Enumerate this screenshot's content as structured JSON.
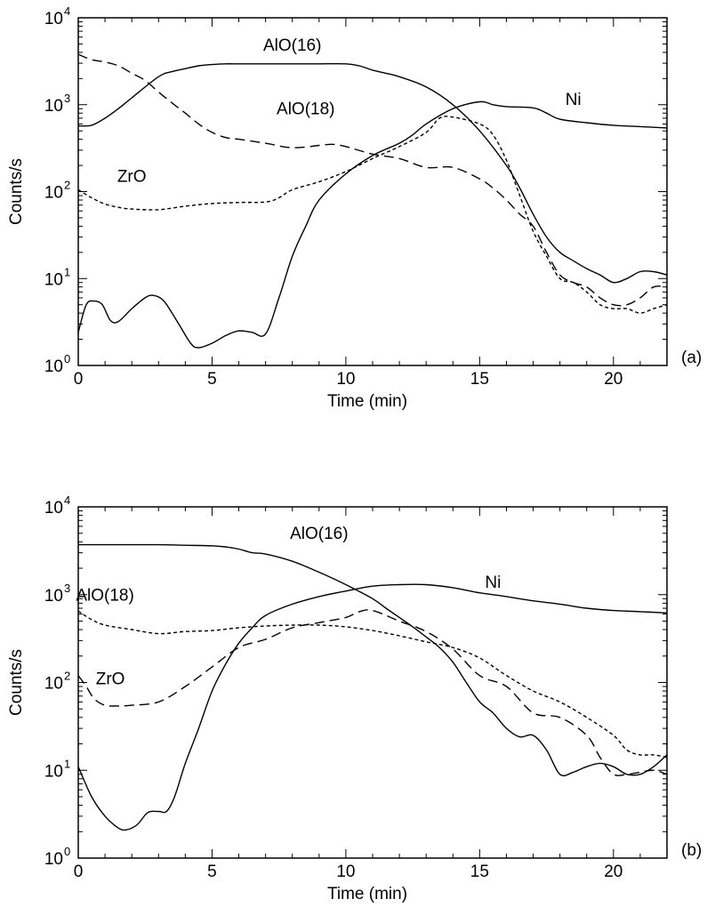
{
  "chart_data": [
    {
      "type": "line",
      "panel_label": "(a)",
      "xlabel": "Time (min)",
      "ylabel": "Counts/s",
      "xlim": [
        0,
        22
      ],
      "ylim": [
        1,
        10000
      ],
      "yscale": "log",
      "xticks": [
        0,
        5,
        10,
        15,
        20
      ],
      "yticks": [
        {
          "base": "10",
          "exp": "0"
        },
        {
          "base": "10",
          "exp": "1"
        },
        {
          "base": "10",
          "exp": "2"
        },
        {
          "base": "10",
          "exp": "3"
        },
        {
          "base": "10",
          "exp": "4"
        }
      ],
      "series": [
        {
          "name": "AlO(16)",
          "style": "solid",
          "x": [
            0,
            0.5,
            1,
            1.5,
            2,
            3,
            3.5,
            4,
            4.5,
            5,
            5.5,
            6,
            7,
            8,
            9,
            10,
            10.5,
            11,
            11.5,
            12,
            13,
            14,
            15,
            16,
            16.5,
            17,
            17.5,
            18,
            18.5,
            19,
            19.5,
            20,
            20.5,
            21,
            21.5,
            22
          ],
          "y": [
            570,
            580,
            700,
            900,
            1200,
            2100,
            2400,
            2600,
            2800,
            2900,
            2950,
            2950,
            2950,
            2950,
            2950,
            2950,
            2800,
            2500,
            2300,
            2100,
            1600,
            1000,
            500,
            200,
            110,
            55,
            30,
            20,
            16,
            13,
            11,
            9,
            10,
            12,
            12,
            11
          ],
          "label_pos": [
            8,
            4200
          ]
        },
        {
          "name": "AlO(18)",
          "style": "long-dash",
          "x": [
            0,
            0.5,
            1,
            1.5,
            2,
            2.5,
            3,
            3.5,
            4,
            4.5,
            5,
            5.5,
            6,
            7,
            8,
            9,
            9.5,
            10,
            11,
            12,
            13,
            14,
            15,
            15.5,
            16,
            16.5,
            17,
            17.5,
            18,
            18.5,
            19,
            19.5,
            20,
            20.5,
            21,
            21.5,
            22
          ],
          "y": [
            3800,
            3300,
            3100,
            2800,
            2300,
            1900,
            1400,
            1050,
            800,
            600,
            480,
            420,
            400,
            360,
            320,
            340,
            350,
            330,
            270,
            240,
            190,
            190,
            140,
            110,
            80,
            55,
            40,
            20,
            11,
            9,
            8,
            6,
            5,
            5,
            6,
            8,
            8
          ],
          "label_pos": [
            8.5,
            780
          ]
        },
        {
          "name": "ZrO",
          "style": "short-dash",
          "x": [
            0,
            0.5,
            1,
            1.5,
            2,
            3,
            4,
            5,
            6,
            7,
            7.5,
            8,
            9,
            10,
            11,
            12,
            13,
            13.5,
            14,
            15,
            15.5,
            16,
            16.5,
            17,
            17.5,
            18,
            18.5,
            19,
            19.5,
            20,
            20.5,
            21,
            21.5,
            22
          ],
          "y": [
            105,
            85,
            72,
            66,
            63,
            62,
            68,
            73,
            75,
            76,
            85,
            105,
            130,
            170,
            240,
            330,
            480,
            700,
            720,
            600,
            450,
            230,
            90,
            35,
            18,
            10,
            9,
            7,
            5,
            4.5,
            4.5,
            4,
            4.5,
            5
          ],
          "label_pos": [
            2,
            130
          ]
        },
        {
          "name": "Ni",
          "style": "solid",
          "x": [
            0,
            0.3,
            0.6,
            0.9,
            1.2,
            1.5,
            2,
            2.5,
            2.8,
            3.2,
            3.7,
            4.2,
            4.5,
            5,
            5.5,
            6,
            6.5,
            7,
            7.5,
            8,
            8.5,
            9,
            10,
            11,
            12,
            12.5,
            13,
            14,
            15,
            15.5,
            16,
            17,
            17.5,
            18,
            19,
            20,
            21,
            22
          ],
          "y": [
            2.4,
            5,
            5.5,
            5,
            3.3,
            3.2,
            4.5,
            6,
            6.4,
            5.5,
            3.2,
            1.8,
            1.6,
            1.8,
            2.2,
            2.5,
            2.4,
            2.3,
            6,
            18,
            40,
            80,
            160,
            260,
            360,
            450,
            600,
            900,
            1080,
            1000,
            950,
            920,
            800,
            680,
            620,
            580,
            560,
            540
          ],
          "label_pos": [
            18.5,
            1000
          ]
        }
      ]
    },
    {
      "type": "line",
      "panel_label": "(b)",
      "xlabel": "Time (min)",
      "ylabel": "Counts/s",
      "xlim": [
        0,
        22
      ],
      "ylim": [
        1,
        10000
      ],
      "yscale": "log",
      "xticks": [
        0,
        5,
        10,
        15,
        20
      ],
      "yticks": [
        {
          "base": "10",
          "exp": "0"
        },
        {
          "base": "10",
          "exp": "1"
        },
        {
          "base": "10",
          "exp": "2"
        },
        {
          "base": "10",
          "exp": "3"
        },
        {
          "base": "10",
          "exp": "4"
        }
      ],
      "series": [
        {
          "name": "AlO(16)",
          "style": "solid",
          "x": [
            0,
            1,
            2,
            3,
            4,
            5,
            5.5,
            6,
            6.5,
            7,
            8,
            9,
            10,
            11,
            11.5,
            12,
            12.5,
            13,
            13.5,
            14,
            14.5,
            15,
            15.5,
            16,
            16.5,
            17,
            17.5,
            18,
            18.5,
            19,
            19.5,
            20,
            20.5,
            21,
            21.5,
            22
          ],
          "y": [
            3700,
            3700,
            3700,
            3700,
            3650,
            3600,
            3500,
            3300,
            3000,
            2900,
            2400,
            1800,
            1300,
            900,
            700,
            550,
            430,
            330,
            250,
            170,
            100,
            60,
            45,
            30,
            24,
            25,
            17,
            9,
            9.5,
            11,
            12,
            11,
            9,
            9,
            11,
            15
          ],
          "label_pos": [
            9,
            4300
          ]
        },
        {
          "name": "AlO(18)",
          "style": "short-dash",
          "x": [
            0,
            0.5,
            1,
            2,
            3,
            4,
            5,
            6,
            7,
            8,
            9,
            10,
            11,
            12,
            13,
            14,
            15,
            16,
            17,
            18,
            19,
            20,
            20.5,
            21,
            21.5,
            22
          ],
          "y": [
            650,
            520,
            450,
            400,
            360,
            380,
            390,
            420,
            440,
            450,
            450,
            430,
            390,
            340,
            290,
            250,
            190,
            120,
            80,
            60,
            40,
            25,
            17,
            15,
            15,
            14
          ],
          "label_pos": [
            1,
            850
          ]
        },
        {
          "name": "ZrO",
          "style": "long-dash",
          "x": [
            0,
            0.3,
            0.6,
            1,
            1.5,
            2,
            3,
            4,
            5,
            6,
            7,
            8,
            9,
            10,
            10.5,
            11,
            12,
            13,
            14,
            15,
            16,
            17,
            18,
            19,
            19.5,
            20,
            20.5,
            21,
            21.5,
            22
          ],
          "y": [
            120,
            90,
            65,
            55,
            54,
            55,
            60,
            90,
            150,
            250,
            310,
            420,
            480,
            550,
            640,
            660,
            500,
            380,
            240,
            120,
            90,
            45,
            40,
            25,
            14,
            9,
            9,
            9.5,
            10,
            9
          ],
          "label_pos": [
            1.2,
            95
          ]
        },
        {
          "name": "Ni",
          "style": "solid",
          "x": [
            0,
            0.5,
            1,
            1.5,
            1.8,
            2.2,
            2.6,
            3,
            3.3,
            3.6,
            4,
            4.5,
            5,
            5.5,
            6,
            6.5,
            7,
            8,
            9,
            10,
            11,
            12,
            13,
            14,
            15,
            16,
            17,
            18,
            19,
            20,
            21,
            22
          ],
          "y": [
            11,
            5,
            3,
            2.2,
            2.1,
            2.4,
            3.3,
            3.4,
            3.4,
            5,
            12,
            30,
            80,
            160,
            280,
            420,
            580,
            780,
            950,
            1100,
            1250,
            1300,
            1300,
            1200,
            1050,
            950,
            850,
            780,
            700,
            660,
            640,
            620
          ],
          "label_pos": [
            15.5,
            1200
          ]
        }
      ]
    }
  ]
}
